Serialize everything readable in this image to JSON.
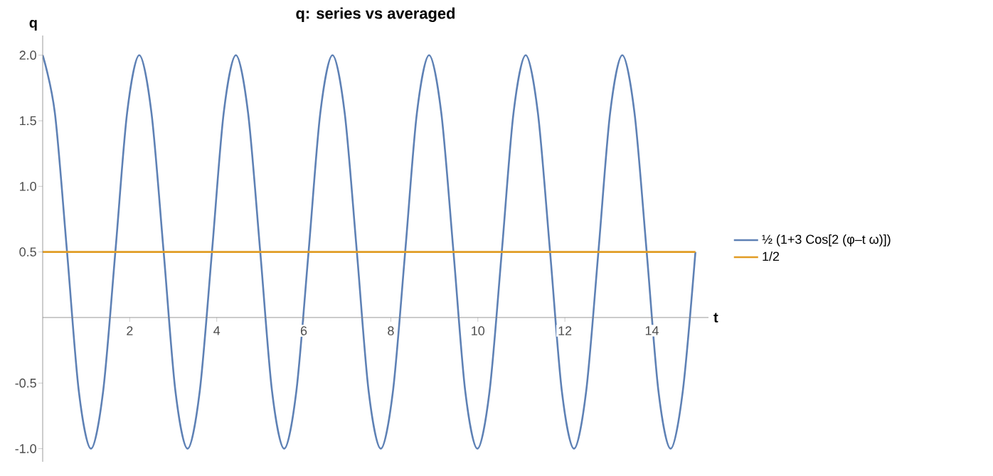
{
  "chart_data": {
    "type": "line",
    "title": "q: series vs averaged",
    "xlabel": "t",
    "ylabel": "q",
    "xlim": [
      0,
      15.3
    ],
    "ylim": [
      -1.1,
      2.15
    ],
    "xticks": [
      2,
      4,
      6,
      8,
      10,
      12,
      14
    ],
    "yticks": [
      {
        "value": -1,
        "label": "-1.0"
      },
      {
        "value": -0.5,
        "label": "-0.5"
      },
      {
        "value": 0.5,
        "label": "0.5"
      },
      {
        "value": 1,
        "label": "1.0"
      },
      {
        "value": 1.5,
        "label": "1.5"
      },
      {
        "value": 2,
        "label": "2.0"
      }
    ],
    "legend": "right",
    "grid": false,
    "marker": "none",
    "line_style": "solid",
    "series": [
      {
        "name": "½ (1+3 Cos[2 (φ–t ω)])",
        "color": "#5e81b5",
        "x": [
          0,
          0.28,
          0.56,
          0.83,
          1.11,
          1.39,
          1.67,
          1.94,
          2.22,
          2.5,
          2.78,
          3.05,
          3.33,
          3.61,
          3.89,
          4.16,
          4.44,
          4.72,
          5.0,
          5.27,
          5.55,
          5.83,
          6.11,
          6.38,
          6.66,
          6.94,
          7.22,
          7.49,
          7.77,
          8.05,
          8.33,
          8.6,
          8.88,
          9.16,
          9.44,
          9.71,
          9.99,
          10.27,
          10.55,
          10.82,
          11.1,
          11.38,
          11.66,
          11.93,
          12.21,
          12.49,
          12.77,
          13.04,
          13.32,
          13.6,
          13.88,
          14.15,
          14.43,
          14.71,
          15
        ],
        "values": [
          2,
          1.56,
          0.5,
          -0.56,
          -1,
          -0.56,
          0.5,
          1.56,
          2,
          1.56,
          0.5,
          -0.56,
          -1,
          -0.56,
          0.5,
          1.56,
          2,
          1.56,
          0.5,
          -0.56,
          -1,
          -0.56,
          0.5,
          1.56,
          2,
          1.56,
          0.5,
          -0.56,
          -1,
          -0.56,
          0.5,
          1.56,
          2,
          1.56,
          0.5,
          -0.56,
          -1,
          -0.56,
          0.5,
          1.56,
          2,
          1.56,
          0.5,
          -0.56,
          -1,
          -0.56,
          0.5,
          1.56,
          2,
          1.56,
          0.5,
          -0.56,
          -1,
          -0.56,
          0.5
        ]
      },
      {
        "name": "1/2",
        "color": "#e19c24",
        "x": [
          0,
          15
        ],
        "values": [
          0.5,
          0.5
        ]
      }
    ]
  }
}
